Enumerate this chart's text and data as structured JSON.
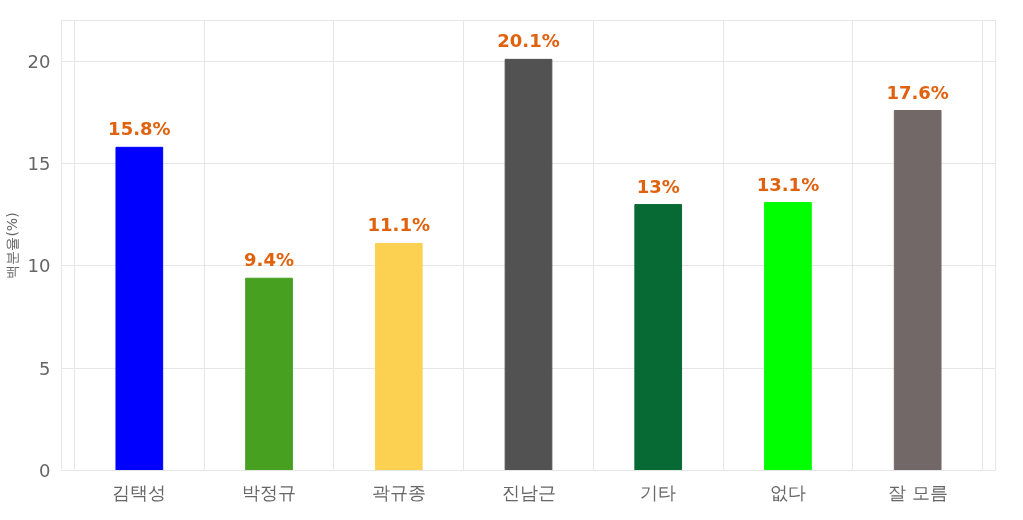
{
  "chart_data": {
    "type": "bar",
    "ylabel": "백분율(%)",
    "categories": [
      "김택성",
      "박정규",
      "곽규종",
      "진남근",
      "기타",
      "없다",
      "잘 모름"
    ],
    "values": [
      15.8,
      9.4,
      11.1,
      20.1,
      13,
      13.1,
      17.6
    ],
    "colors": [
      "#0000ff",
      "#47a020",
      "#fcd152",
      "#525252",
      "#076a34",
      "#00ff00",
      "#716867"
    ],
    "value_labels": [
      "15.8%",
      "9.4%",
      "11.1%",
      "20.1%",
      "13%",
      "13.1%",
      "17.6%"
    ],
    "ylim": [
      0,
      22
    ],
    "yticks": [
      0,
      5,
      10,
      15,
      20
    ],
    "grid": true
  }
}
